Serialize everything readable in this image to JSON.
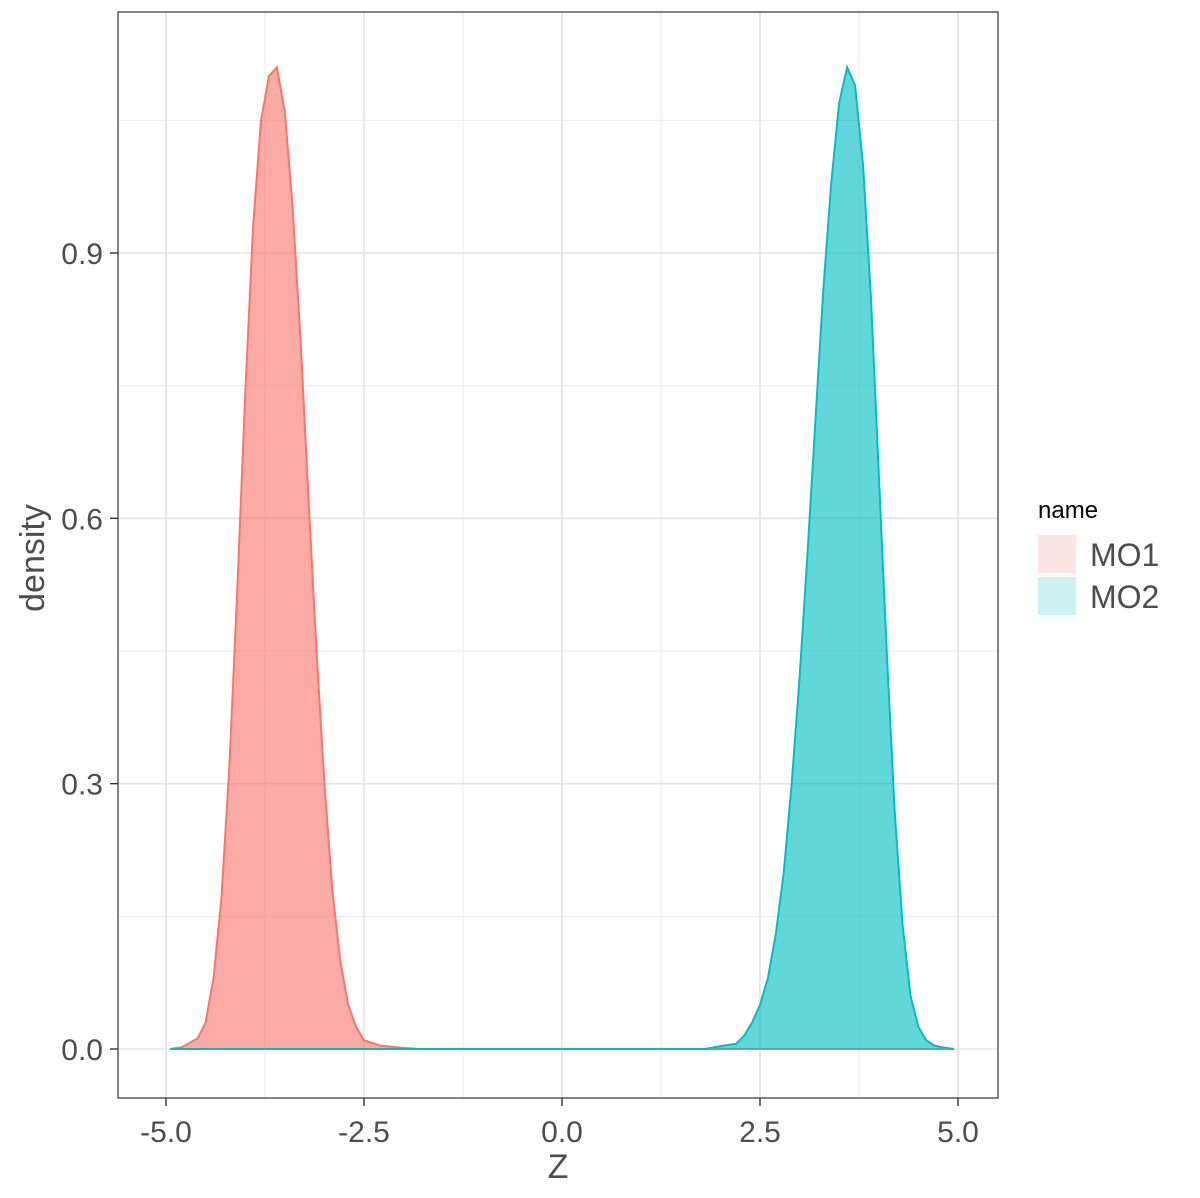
{
  "chart_data": {
    "type": "area",
    "subtype": "density",
    "xlabel": "Z",
    "ylabel": "density",
    "xlim": [
      -5.0,
      5.0
    ],
    "ylim": [
      0,
      1.11
    ],
    "x_ticks": [
      "-5.0",
      "-2.5",
      "0.0",
      "2.5",
      "5.0"
    ],
    "y_ticks": [
      "0.0",
      "0.3",
      "0.6",
      "0.9"
    ],
    "grid": true,
    "legend": {
      "title": "name",
      "position": "right"
    },
    "series": [
      {
        "name": "MO1",
        "fill": "#f8766d",
        "stroke": "#f8766d",
        "points": [
          [
            -4.95,
            0.0
          ],
          [
            -4.8,
            0.002
          ],
          [
            -4.6,
            0.012
          ],
          [
            -4.5,
            0.03
          ],
          [
            -4.4,
            0.08
          ],
          [
            -4.3,
            0.17
          ],
          [
            -4.2,
            0.32
          ],
          [
            -4.1,
            0.52
          ],
          [
            -4.0,
            0.74
          ],
          [
            -3.9,
            0.93
          ],
          [
            -3.8,
            1.05
          ],
          [
            -3.7,
            1.1
          ],
          [
            -3.6,
            1.11
          ],
          [
            -3.5,
            1.06
          ],
          [
            -3.4,
            0.95
          ],
          [
            -3.3,
            0.8
          ],
          [
            -3.2,
            0.62
          ],
          [
            -3.1,
            0.45
          ],
          [
            -3.0,
            0.3
          ],
          [
            -2.9,
            0.18
          ],
          [
            -2.8,
            0.1
          ],
          [
            -2.7,
            0.05
          ],
          [
            -2.6,
            0.025
          ],
          [
            -2.5,
            0.01
          ],
          [
            -2.3,
            0.004
          ],
          [
            -2.1,
            0.002
          ],
          [
            -1.8,
            0.0
          ],
          [
            -1.0,
            0.0
          ],
          [
            0.0,
            0.0
          ],
          [
            1.0,
            0.0
          ],
          [
            2.0,
            0.0
          ],
          [
            3.0,
            0.0
          ],
          [
            4.0,
            0.0
          ],
          [
            4.95,
            0.0
          ]
        ]
      },
      {
        "name": "MO2",
        "fill": "#00bfc4",
        "stroke": "#00bfc4",
        "points": [
          [
            -4.95,
            0.0
          ],
          [
            -3.0,
            0.0
          ],
          [
            -2.0,
            0.0
          ],
          [
            -1.0,
            0.0
          ],
          [
            0.0,
            0.0
          ],
          [
            1.0,
            0.0
          ],
          [
            1.8,
            0.0
          ],
          [
            2.05,
            0.004
          ],
          [
            2.2,
            0.006
          ],
          [
            2.3,
            0.015
          ],
          [
            2.4,
            0.03
          ],
          [
            2.5,
            0.05
          ],
          [
            2.6,
            0.08
          ],
          [
            2.7,
            0.13
          ],
          [
            2.8,
            0.2
          ],
          [
            2.9,
            0.3
          ],
          [
            3.0,
            0.42
          ],
          [
            3.1,
            0.56
          ],
          [
            3.2,
            0.71
          ],
          [
            3.3,
            0.86
          ],
          [
            3.4,
            0.98
          ],
          [
            3.5,
            1.07
          ],
          [
            3.6,
            1.11
          ],
          [
            3.7,
            1.09
          ],
          [
            3.8,
            1.0
          ],
          [
            3.9,
            0.85
          ],
          [
            4.0,
            0.65
          ],
          [
            4.1,
            0.45
          ],
          [
            4.2,
            0.27
          ],
          [
            4.3,
            0.14
          ],
          [
            4.4,
            0.06
          ],
          [
            4.5,
            0.025
          ],
          [
            4.6,
            0.01
          ],
          [
            4.7,
            0.004
          ],
          [
            4.8,
            0.002
          ],
          [
            4.95,
            0.0
          ]
        ]
      }
    ]
  }
}
